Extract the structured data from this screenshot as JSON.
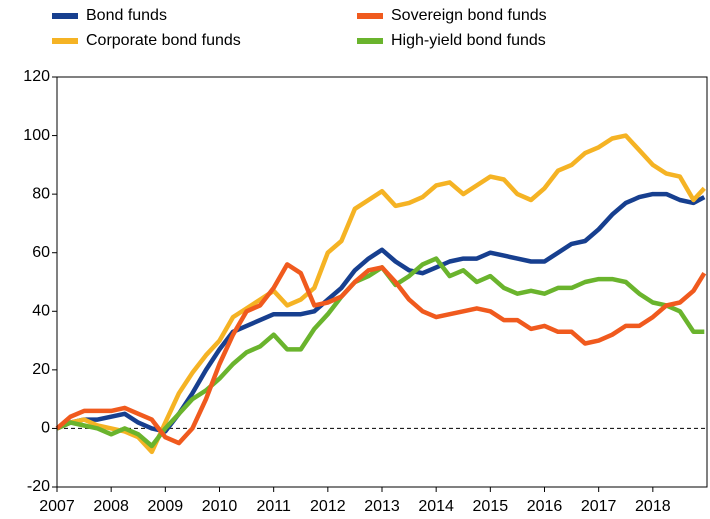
{
  "chart_data": {
    "type": "line",
    "x": [
      2007,
      2007.25,
      2007.5,
      2007.75,
      2008,
      2008.25,
      2008.5,
      2008.75,
      2009,
      2009.25,
      2009.5,
      2009.75,
      2010,
      2010.25,
      2010.5,
      2010.75,
      2011,
      2011.25,
      2011.5,
      2011.75,
      2012,
      2012.25,
      2012.5,
      2012.75,
      2013,
      2013.25,
      2013.5,
      2013.75,
      2014,
      2014.25,
      2014.5,
      2014.75,
      2015,
      2015.25,
      2015.5,
      2015.75,
      2016,
      2016.25,
      2016.5,
      2016.75,
      2017,
      2017.25,
      2017.5,
      2017.75,
      2018,
      2018.25,
      2018.5,
      2018.75,
      2018.95
    ],
    "series": [
      {
        "name": "Bond funds",
        "color": "#173f8f",
        "values": [
          0,
          2,
          3,
          3,
          4,
          5,
          2,
          0,
          -1,
          5,
          12,
          20,
          27,
          33,
          35,
          37,
          39,
          39,
          39,
          40,
          44,
          48,
          54,
          58,
          61,
          57,
          54,
          53,
          55,
          57,
          58,
          58,
          60,
          59,
          58,
          57,
          57,
          60,
          63,
          64,
          68,
          73,
          77,
          79,
          80,
          80,
          78,
          77,
          79
        ]
      },
      {
        "name": "Sovereign bond funds",
        "color": "#f05a1e",
        "values": [
          0,
          4,
          6,
          6,
          6,
          7,
          5,
          3,
          -3,
          -5,
          0,
          10,
          22,
          32,
          40,
          42,
          48,
          56,
          53,
          42,
          43,
          45,
          50,
          54,
          55,
          50,
          44,
          40,
          38,
          39,
          40,
          41,
          40,
          37,
          37,
          34,
          35,
          33,
          33,
          29,
          30,
          32,
          35,
          35,
          38,
          42,
          43,
          47,
          53
        ]
      },
      {
        "name": "Corporate bond funds",
        "color": "#f5b324",
        "values": [
          0,
          2,
          3,
          1,
          0,
          -1,
          -3,
          -8,
          2,
          12,
          19,
          25,
          30,
          38,
          41,
          44,
          47,
          42,
          44,
          48,
          60,
          64,
          75,
          78,
          81,
          76,
          77,
          79,
          83,
          84,
          80,
          83,
          86,
          85,
          80,
          78,
          82,
          88,
          90,
          94,
          96,
          99,
          100,
          95,
          90,
          87,
          86,
          78,
          82
        ]
      },
      {
        "name": "High-yield bond funds",
        "color": "#6ab42d",
        "values": [
          0,
          2,
          1,
          0,
          -2,
          0,
          -2,
          -6,
          0,
          5,
          10,
          13,
          17,
          22,
          26,
          28,
          32,
          27,
          27,
          34,
          39,
          45,
          50,
          52,
          55,
          49,
          52,
          56,
          58,
          52,
          54,
          50,
          52,
          48,
          46,
          47,
          46,
          48,
          48,
          50,
          51,
          51,
          50,
          46,
          43,
          42,
          40,
          33,
          33
        ]
      }
    ],
    "xlim": [
      2007,
      2019
    ],
    "xticks": [
      2007,
      2008,
      2009,
      2010,
      2011,
      2012,
      2013,
      2014,
      2015,
      2016,
      2017,
      2018
    ],
    "ylim": [
      -20,
      120
    ],
    "yticks": [
      -20,
      0,
      20,
      40,
      60,
      80,
      100,
      120
    ],
    "grid": false
  }
}
